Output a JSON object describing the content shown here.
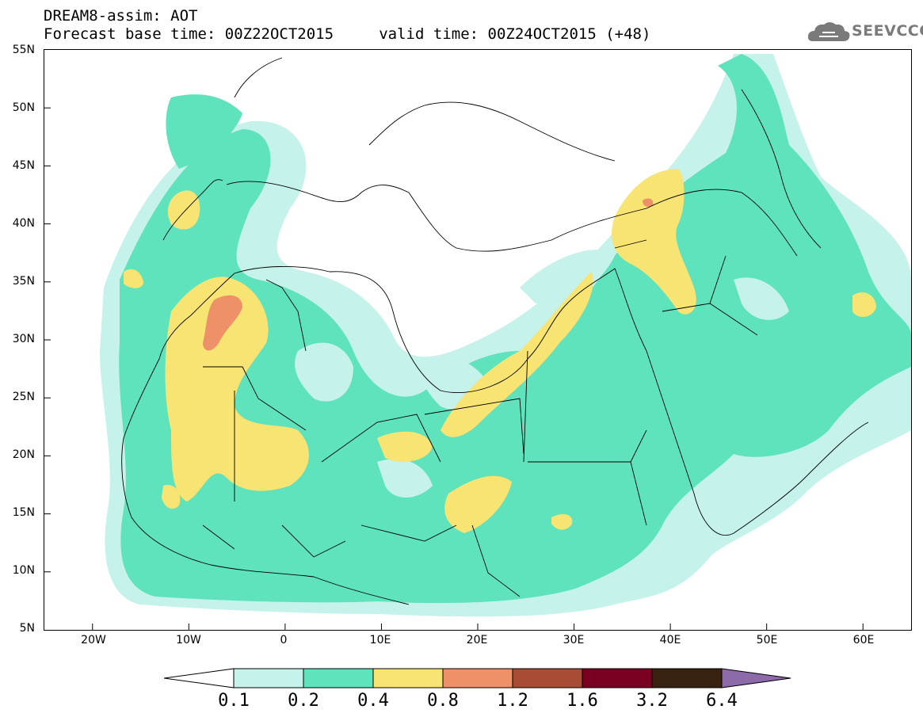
{
  "header": {
    "title": "DREAM8-assim: AOT",
    "subtitle": "Forecast base time: 00Z22OCT2015     valid time: 00Z24OCT2015 (+48)",
    "logo_text": "SEEVCCC"
  },
  "map": {
    "variable": "Aerosol Optical Thickness",
    "lat_range": [
      5,
      55
    ],
    "lon_range": [
      -25,
      65
    ],
    "lat_labels": [
      "55N",
      "50N",
      "45N",
      "40N",
      "35N",
      "30N",
      "25N",
      "20N",
      "15N",
      "10N",
      "5N"
    ],
    "lon_labels": [
      "20W",
      "10W",
      "0",
      "10E",
      "20E",
      "30E",
      "40E",
      "50E",
      "60E"
    ],
    "colors": {
      "c01": "#c5f2ea",
      "c02": "#5fe3bd",
      "c04": "#f8e473",
      "c08": "#ee9068",
      "c12": "#a84c36",
      "c16": "#7a0022",
      "c32": "#3a2211",
      "c64": "#8d6baa"
    }
  },
  "colorbar": {
    "labels": [
      "0.1",
      "0.2",
      "0.4",
      "0.8",
      "1.2",
      "1.6",
      "3.2",
      "6.4"
    ]
  }
}
